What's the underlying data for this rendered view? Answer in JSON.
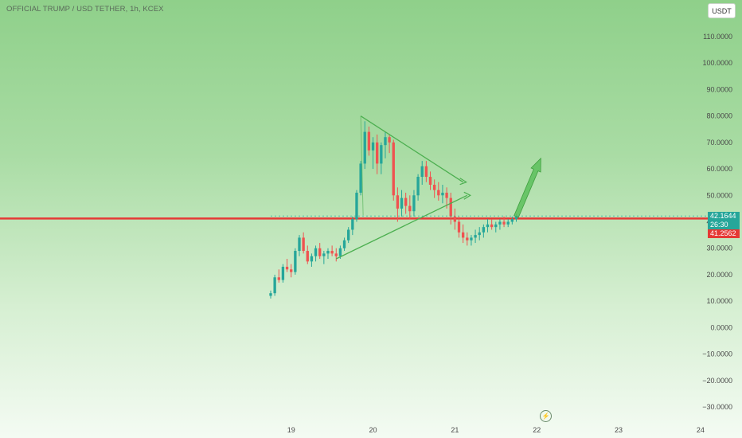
{
  "header": {
    "title": "OFFICIAL TRUMP / USD TETHER, 1h, KCEX"
  },
  "controls": {
    "currency": "USDT"
  },
  "price_tags": {
    "last": "42.1644",
    "countdown": "26:30",
    "line": "41.2562"
  },
  "colors": {
    "up": "#26a69a",
    "down": "#ef5350",
    "line": "#e53935",
    "drawing": "#4caf50"
  },
  "icons": {
    "footer": "lightning-icon"
  },
  "chart_data": {
    "type": "candlestick",
    "title": "OFFICIAL TRUMP / USD TETHER, 1h, KCEX",
    "ylim": [
      -30,
      110
    ],
    "yticks": [
      110,
      100,
      90,
      80,
      70,
      60,
      50,
      40,
      30,
      20,
      10,
      0,
      -10,
      -20,
      -30
    ],
    "ytick_labels": [
      "110.0000",
      "100.0000",
      "90.0000",
      "80.0000",
      "70.0000",
      "60.0000",
      "50.0000",
      "40.0000",
      "30.0000",
      "20.0000",
      "10.0000",
      "0.0000",
      "−10.0000",
      "−20.0000",
      "−30.0000"
    ],
    "xlim": [
      18.75,
      24.05
    ],
    "xticks": [
      19,
      20,
      21,
      22,
      23,
      24
    ],
    "xtick_labels": [
      "19",
      "20",
      "21",
      "22",
      "23",
      "24"
    ],
    "horizontal_line": 41.2562,
    "last_price": 42.1644,
    "grid": false,
    "candles": [
      [
        18.75,
        12,
        14,
        11,
        13
      ],
      [
        18.8,
        13,
        20,
        12,
        19
      ],
      [
        18.85,
        19,
        22,
        17,
        18
      ],
      [
        18.9,
        18,
        24,
        17,
        23
      ],
      [
        18.95,
        23,
        26,
        21,
        22
      ],
      [
        19.0,
        22,
        24,
        19,
        21
      ],
      [
        19.05,
        21,
        30,
        20,
        29
      ],
      [
        19.1,
        29,
        35,
        27,
        34
      ],
      [
        19.15,
        34,
        36,
        28,
        29
      ],
      [
        19.2,
        29,
        31,
        24,
        25
      ],
      [
        19.25,
        25,
        28,
        23,
        27
      ],
      [
        19.3,
        27,
        31,
        25,
        30
      ],
      [
        19.35,
        30,
        32,
        26,
        27
      ],
      [
        19.4,
        27,
        29,
        24,
        28
      ],
      [
        19.45,
        28,
        30,
        26,
        29
      ],
      [
        19.5,
        29,
        31,
        27,
        28
      ],
      [
        19.55,
        28,
        30,
        25,
        27
      ],
      [
        19.6,
        27,
        31,
        26,
        30
      ],
      [
        19.65,
        30,
        34,
        29,
        33
      ],
      [
        19.7,
        33,
        38,
        32,
        37
      ],
      [
        19.75,
        37,
        42,
        35,
        41
      ],
      [
        19.8,
        41,
        52,
        40,
        51
      ],
      [
        19.85,
        51,
        63,
        50,
        62
      ],
      [
        19.9,
        62,
        78,
        60,
        74
      ],
      [
        19.95,
        74,
        76,
        65,
        67
      ],
      [
        20.0,
        67,
        72,
        60,
        70
      ],
      [
        20.05,
        70,
        73,
        58,
        62
      ],
      [
        20.1,
        62,
        70,
        58,
        69
      ],
      [
        20.15,
        69,
        74,
        64,
        72
      ],
      [
        20.2,
        72,
        73,
        66,
        70
      ],
      [
        20.25,
        70,
        71,
        48,
        50
      ],
      [
        20.3,
        50,
        53,
        40,
        45
      ],
      [
        20.35,
        45,
        52,
        42,
        49
      ],
      [
        20.4,
        49,
        51,
        43,
        46
      ],
      [
        20.45,
        46,
        50,
        41,
        44
      ],
      [
        20.5,
        44,
        52,
        42,
        50
      ],
      [
        20.55,
        50,
        58,
        48,
        57
      ],
      [
        20.6,
        57,
        63,
        54,
        61
      ],
      [
        20.65,
        61,
        63,
        55,
        57
      ],
      [
        20.7,
        57,
        59,
        52,
        54
      ],
      [
        20.75,
        54,
        56,
        49,
        52
      ],
      [
        20.8,
        52,
        55,
        48,
        50
      ],
      [
        20.85,
        50,
        54,
        47,
        51
      ],
      [
        20.9,
        51,
        53,
        45,
        49
      ],
      [
        20.95,
        49,
        51,
        39,
        42
      ],
      [
        21.0,
        42,
        45,
        37,
        40
      ],
      [
        21.05,
        40,
        42,
        34,
        36
      ],
      [
        21.1,
        36,
        39,
        32,
        34
      ],
      [
        21.15,
        34,
        36,
        31,
        33
      ],
      [
        21.2,
        33,
        35,
        31,
        34
      ],
      [
        21.25,
        34,
        37,
        32,
        35
      ],
      [
        21.3,
        35,
        38,
        33,
        36
      ],
      [
        21.35,
        36,
        39,
        34,
        38
      ],
      [
        21.4,
        38,
        41,
        36,
        39
      ],
      [
        21.45,
        39,
        41,
        37,
        38
      ],
      [
        21.5,
        38,
        40,
        36,
        39
      ],
      [
        21.55,
        39,
        41,
        37,
        40
      ],
      [
        21.6,
        40,
        42,
        38,
        39
      ],
      [
        21.65,
        39,
        41,
        38,
        40
      ],
      [
        21.7,
        40,
        42,
        39,
        41
      ],
      [
        21.75,
        41,
        43,
        40,
        42
      ]
    ],
    "drawings": {
      "triangle_upper": [
        [
          19.85,
          80
        ],
        [
          21.1,
          55
        ]
      ],
      "triangle_lower": [
        [
          19.55,
          26
        ],
        [
          21.15,
          50
        ]
      ],
      "arrow_target": [
        [
          21.75,
          42
        ],
        [
          22.05,
          64
        ]
      ]
    }
  }
}
